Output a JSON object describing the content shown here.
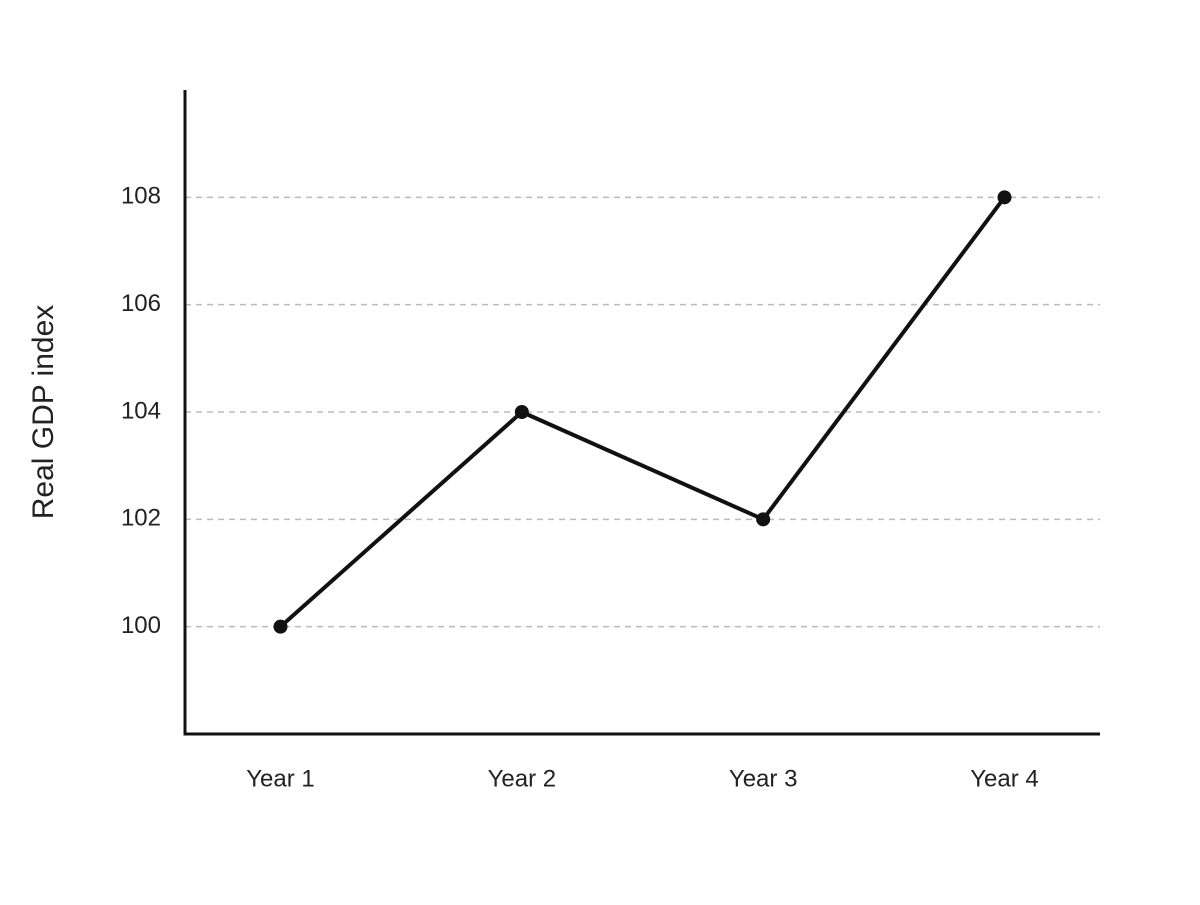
{
  "chart_data": {
    "type": "line",
    "y_label": "Real GDP index",
    "categories": [
      "Year 1",
      "Year 2",
      "Year 3",
      "Year 4"
    ],
    "values": [
      100,
      104,
      102,
      108
    ],
    "color": "#111111",
    "ylim": [
      98,
      110
    ],
    "yticks": [
      100,
      102,
      104,
      106,
      108
    ],
    "grid": true
  }
}
